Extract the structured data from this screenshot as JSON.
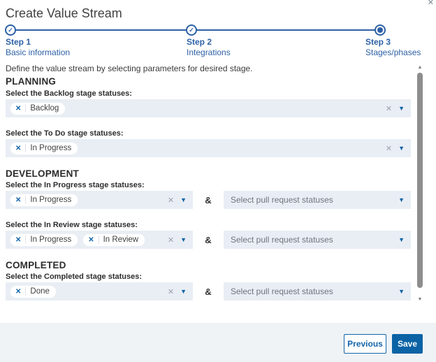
{
  "dialog": {
    "title": "Create Value Stream"
  },
  "icons": {
    "close": "✕",
    "check": "✓",
    "chip_remove": "✕",
    "clear_all": "✕",
    "caret_down": "▼",
    "scroll_up": "▲",
    "scroll_down": "▼"
  },
  "stepper": {
    "steps": [
      {
        "label": "Step 1",
        "sublabel": "Basic information",
        "state": "complete"
      },
      {
        "label": "Step 2",
        "sublabel": "Integrations",
        "state": "complete"
      },
      {
        "label": "Step 3",
        "sublabel": "Stages/phases",
        "state": "active"
      }
    ]
  },
  "content": {
    "description": "Define the value stream by selecting parameters for desired stage.",
    "ampersand": "&",
    "pr_select_placeholder": "Select pull request statuses",
    "sections": [
      {
        "heading": "PLANNING",
        "fields": [
          {
            "label": "Select the Backlog stage statuses:",
            "chips": [
              "Backlog"
            ]
          },
          {
            "label": "Select the To Do stage statuses:",
            "chips": [
              "In Progress"
            ]
          }
        ]
      },
      {
        "heading": "DEVELOPMENT",
        "fields": [
          {
            "label": "Select the In Progress stage statuses:",
            "chips": [
              "In Progress"
            ]
          },
          {
            "label": "Select the In Review stage statuses:",
            "chips": [
              "In Progress",
              "In Review"
            ]
          }
        ]
      },
      {
        "heading": "COMPLETED",
        "fields": [
          {
            "label": "Select the Completed stage statuses:",
            "chips": [
              "Done"
            ]
          }
        ]
      }
    ]
  },
  "footer": {
    "previous_label": "Previous",
    "save_label": "Save"
  },
  "colors": {
    "primary_blue": "#0b63a5",
    "stepper_blue": "#2d61a6",
    "select_bg": "#e9eef5",
    "footer_bg": "#eff3f6",
    "text_dark": "#2e2e2e",
    "placeholder_gray": "#70757d",
    "scrollbar_thumb": "#8d8d8d"
  }
}
